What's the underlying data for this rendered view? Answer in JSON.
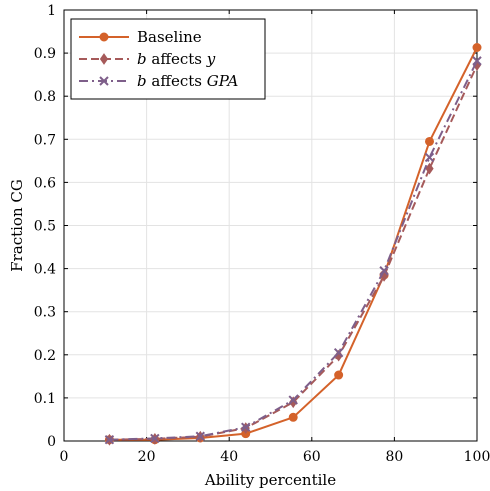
{
  "chart_data": {
    "type": "line",
    "title": "",
    "xlabel": "Ability percentile",
    "ylabel": "Fraction CG",
    "xlim": [
      0,
      100
    ],
    "ylim": [
      0,
      1
    ],
    "xticks": [
      0,
      20,
      40,
      60,
      80,
      100
    ],
    "yticks": [
      0,
      0.1,
      0.2,
      0.3,
      0.4,
      0.5,
      0.6,
      0.7,
      0.8,
      0.9,
      1
    ],
    "x": [
      11,
      22,
      33,
      44,
      55.5,
      66.5,
      77.5,
      88.5,
      100
    ],
    "grid": true,
    "legend_position": "top-left",
    "series": [
      {
        "name": "Baseline",
        "values": [
          0.003,
          0.003,
          0.007,
          0.017,
          0.055,
          0.153,
          0.385,
          0.695,
          0.913
        ],
        "color": "#d4622a",
        "linestyle": "solid",
        "marker": "circle"
      },
      {
        "name": "b affects y",
        "values": [
          0.003,
          0.005,
          0.01,
          0.03,
          0.09,
          0.198,
          0.383,
          0.632,
          0.872
        ],
        "color": "#a65a5a",
        "linestyle": "dashed",
        "marker": "diamond"
      },
      {
        "name": "b affects GPA",
        "values": [
          0.003,
          0.006,
          0.011,
          0.032,
          0.095,
          0.205,
          0.395,
          0.658,
          0.882
        ],
        "color": "#7e5f8a",
        "linestyle": "dashdot",
        "marker": "x"
      }
    ]
  }
}
